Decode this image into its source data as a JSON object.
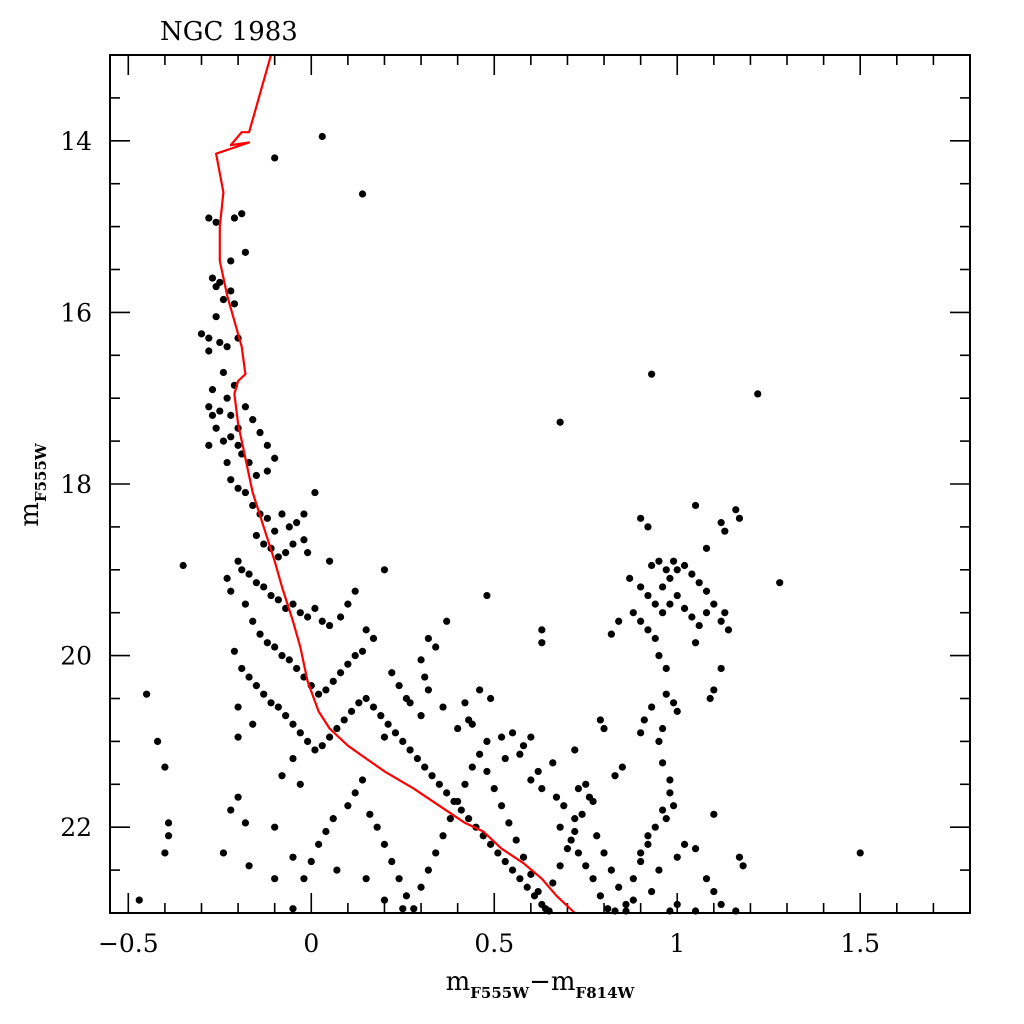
{
  "chart_data": {
    "type": "scatter",
    "title": "NGC 1983",
    "xlabel": {
      "main1": "m",
      "sub1": "F555W",
      "sep": "−",
      "main2": "m",
      "sub2": "F814W"
    },
    "ylabel": {
      "main": "m",
      "sub": "F555W"
    },
    "xlim": [
      -0.55,
      1.8
    ],
    "ylim": [
      23.0,
      13.0
    ],
    "y_inverted": true,
    "x_ticks": [
      {
        "value": -0.5,
        "label": "−0.5"
      },
      {
        "value": 0,
        "label": "0"
      },
      {
        "value": 0.5,
        "label": "0.5"
      },
      {
        "value": 1,
        "label": "1"
      },
      {
        "value": 1.5,
        "label": "1.5"
      }
    ],
    "y_ticks": [
      {
        "value": 14,
        "label": "14"
      },
      {
        "value": 16,
        "label": "16"
      },
      {
        "value": 18,
        "label": "18"
      },
      {
        "value": 20,
        "label": "20"
      },
      {
        "value": 22,
        "label": "22"
      }
    ],
    "x_minor_step": 0.1,
    "y_minor_step": 0.5,
    "isochrone_color": "#ff0000",
    "point_color": "#000000",
    "isochrone": [
      [
        -0.11,
        13.0
      ],
      [
        -0.13,
        13.3
      ],
      [
        -0.15,
        13.6
      ],
      [
        -0.17,
        13.9
      ],
      [
        -0.19,
        13.9
      ],
      [
        -0.22,
        14.05
      ],
      [
        -0.17,
        14.02
      ],
      [
        -0.26,
        14.15
      ],
      [
        -0.24,
        14.6
      ],
      [
        -0.25,
        15.0
      ],
      [
        -0.25,
        15.4
      ],
      [
        -0.23,
        15.8
      ],
      [
        -0.21,
        16.1
      ],
      [
        -0.19,
        16.4
      ],
      [
        -0.18,
        16.72
      ],
      [
        -0.2,
        16.8
      ],
      [
        -0.21,
        16.95
      ],
      [
        -0.2,
        17.3
      ],
      [
        -0.18,
        17.7
      ],
      [
        -0.16,
        18.1
      ],
      [
        -0.13,
        18.5
      ],
      [
        -0.1,
        18.9
      ],
      [
        -0.08,
        19.2
      ],
      [
        -0.05,
        19.6
      ],
      [
        -0.03,
        19.9
      ],
      [
        -0.01,
        20.3
      ],
      [
        0.02,
        20.65
      ],
      [
        0.05,
        20.85
      ],
      [
        0.1,
        21.05
      ],
      [
        0.15,
        21.2
      ],
      [
        0.2,
        21.35
      ],
      [
        0.28,
        21.55
      ],
      [
        0.35,
        21.75
      ],
      [
        0.42,
        21.95
      ],
      [
        0.47,
        22.05
      ],
      [
        0.52,
        22.25
      ],
      [
        0.58,
        22.42
      ],
      [
        0.63,
        22.6
      ],
      [
        0.67,
        22.8
      ],
      [
        0.72,
        23.05
      ]
    ],
    "points": [
      [
        0.03,
        13.95
      ],
      [
        -0.1,
        14.2
      ],
      [
        0.14,
        14.62
      ],
      [
        -0.28,
        14.9
      ],
      [
        -0.26,
        14.95
      ],
      [
        -0.19,
        14.85
      ],
      [
        -0.21,
        14.9
      ],
      [
        -0.18,
        15.3
      ],
      [
        -0.22,
        15.4
      ],
      [
        -0.27,
        15.6
      ],
      [
        -0.26,
        15.7
      ],
      [
        -0.25,
        15.65
      ],
      [
        -0.22,
        15.75
      ],
      [
        -0.24,
        15.85
      ],
      [
        -0.21,
        15.9
      ],
      [
        -0.26,
        16.05
      ],
      [
        -0.28,
        16.3
      ],
      [
        -0.3,
        16.25
      ],
      [
        -0.25,
        16.35
      ],
      [
        -0.23,
        16.4
      ],
      [
        -0.28,
        16.45
      ],
      [
        -0.2,
        16.3
      ],
      [
        -0.24,
        16.7
      ],
      [
        -0.27,
        16.9
      ],
      [
        -0.23,
        17.0
      ],
      [
        -0.21,
        16.85
      ],
      [
        -0.25,
        17.15
      ],
      [
        -0.28,
        17.1
      ],
      [
        -0.27,
        17.2
      ],
      [
        -0.26,
        17.35
      ],
      [
        -0.28,
        17.55
      ],
      [
        -0.22,
        17.2
      ],
      [
        -0.2,
        17.35
      ],
      [
        -0.18,
        17.1
      ],
      [
        -0.16,
        17.25
      ],
      [
        -0.14,
        17.4
      ],
      [
        -0.12,
        17.55
      ],
      [
        -0.22,
        17.45
      ],
      [
        -0.24,
        17.5
      ],
      [
        -0.2,
        17.55
      ],
      [
        -0.19,
        17.65
      ],
      [
        -0.17,
        17.75
      ],
      [
        -0.15,
        17.9
      ],
      [
        -0.12,
        17.85
      ],
      [
        -0.1,
        17.7
      ],
      [
        -0.23,
        17.75
      ],
      [
        -0.22,
        17.95
      ],
      [
        -0.2,
        18.05
      ],
      [
        -0.18,
        18.1
      ],
      [
        -0.16,
        18.25
      ],
      [
        -0.14,
        18.35
      ],
      [
        -0.12,
        18.4
      ],
      [
        -0.1,
        18.55
      ],
      [
        -0.08,
        18.35
      ],
      [
        -0.06,
        18.5
      ],
      [
        -0.04,
        18.45
      ],
      [
        -0.02,
        18.35
      ],
      [
        0.01,
        18.1
      ],
      [
        -0.15,
        18.6
      ],
      [
        -0.13,
        18.7
      ],
      [
        -0.11,
        18.75
      ],
      [
        -0.09,
        18.85
      ],
      [
        -0.07,
        18.8
      ],
      [
        -0.05,
        18.7
      ],
      [
        -0.02,
        18.65
      ],
      [
        -0.01,
        18.8
      ],
      [
        0.05,
        18.9
      ],
      [
        -0.2,
        18.9
      ],
      [
        -0.19,
        19.0
      ],
      [
        -0.17,
        19.05
      ],
      [
        -0.15,
        19.15
      ],
      [
        -0.13,
        19.2
      ],
      [
        -0.11,
        19.3
      ],
      [
        -0.09,
        19.35
      ],
      [
        -0.07,
        19.45
      ],
      [
        -0.05,
        19.4
      ],
      [
        -0.03,
        19.5
      ],
      [
        -0.01,
        19.55
      ],
      [
        0.01,
        19.45
      ],
      [
        0.03,
        19.6
      ],
      [
        0.05,
        19.65
      ],
      [
        0.08,
        19.55
      ],
      [
        0.1,
        19.4
      ],
      [
        0.12,
        19.25
      ],
      [
        0.15,
        19.7
      ],
      [
        0.17,
        19.8
      ],
      [
        0.2,
        19.0
      ],
      [
        -0.35,
        18.95
      ],
      [
        -0.23,
        19.1
      ],
      [
        -0.22,
        19.25
      ],
      [
        -0.18,
        19.4
      ],
      [
        -0.16,
        19.6
      ],
      [
        -0.14,
        19.75
      ],
      [
        -0.12,
        19.85
      ],
      [
        -0.1,
        19.9
      ],
      [
        -0.08,
        20.0
      ],
      [
        -0.06,
        20.05
      ],
      [
        -0.04,
        20.15
      ],
      [
        -0.02,
        20.25
      ],
      [
        0.0,
        20.35
      ],
      [
        0.02,
        20.45
      ],
      [
        0.04,
        20.4
      ],
      [
        0.06,
        20.3
      ],
      [
        0.08,
        20.2
      ],
      [
        0.1,
        20.1
      ],
      [
        0.12,
        20.0
      ],
      [
        0.14,
        19.95
      ],
      [
        -0.21,
        19.95
      ],
      [
        -0.19,
        20.15
      ],
      [
        -0.17,
        20.25
      ],
      [
        -0.15,
        20.35
      ],
      [
        -0.13,
        20.45
      ],
      [
        -0.11,
        20.55
      ],
      [
        -0.09,
        20.6
      ],
      [
        -0.07,
        20.7
      ],
      [
        -0.05,
        20.8
      ],
      [
        -0.03,
        20.9
      ],
      [
        -0.01,
        21.0
      ],
      [
        0.01,
        21.1
      ],
      [
        0.03,
        21.05
      ],
      [
        0.05,
        20.95
      ],
      [
        0.07,
        20.85
      ],
      [
        0.09,
        20.75
      ],
      [
        0.11,
        20.65
      ],
      [
        0.13,
        20.55
      ],
      [
        0.15,
        20.5
      ],
      [
        0.17,
        20.6
      ],
      [
        0.19,
        20.7
      ],
      [
        0.21,
        20.8
      ],
      [
        0.23,
        20.9
      ],
      [
        0.25,
        21.0
      ],
      [
        0.27,
        21.1
      ],
      [
        0.29,
        21.2
      ],
      [
        0.31,
        21.3
      ],
      [
        0.33,
        21.4
      ],
      [
        0.35,
        21.5
      ],
      [
        0.37,
        21.6
      ],
      [
        0.39,
        21.7
      ],
      [
        0.41,
        21.8
      ],
      [
        0.43,
        21.9
      ],
      [
        0.45,
        22.0
      ],
      [
        0.47,
        22.1
      ],
      [
        0.49,
        22.2
      ],
      [
        0.51,
        22.3
      ],
      [
        0.53,
        22.4
      ],
      [
        0.55,
        22.5
      ],
      [
        0.57,
        22.6
      ],
      [
        0.59,
        22.7
      ],
      [
        0.61,
        22.8
      ],
      [
        0.63,
        22.9
      ],
      [
        0.65,
        23.0
      ],
      [
        -0.45,
        20.45
      ],
      [
        -0.4,
        21.3
      ],
      [
        -0.42,
        21.0
      ],
      [
        -0.39,
        21.95
      ],
      [
        -0.39,
        22.1
      ],
      [
        -0.4,
        22.3
      ],
      [
        -0.2,
        20.6
      ],
      [
        -0.2,
        20.95
      ],
      [
        -0.16,
        20.8
      ],
      [
        -0.2,
        21.65
      ],
      [
        -0.22,
        21.8
      ],
      [
        -0.17,
        22.45
      ],
      [
        -0.24,
        22.3
      ],
      [
        -0.18,
        21.95
      ],
      [
        -0.08,
        21.4
      ],
      [
        -0.05,
        21.2
      ],
      [
        -0.03,
        21.5
      ],
      [
        -0.1,
        22.0
      ],
      [
        -0.05,
        22.35
      ],
      [
        -0.02,
        22.6
      ],
      [
        0.0,
        22.4
      ],
      [
        0.02,
        22.2
      ],
      [
        0.04,
        22.05
      ],
      [
        0.06,
        21.9
      ],
      [
        0.07,
        22.5
      ],
      [
        0.1,
        21.75
      ],
      [
        0.12,
        21.6
      ],
      [
        0.14,
        21.45
      ],
      [
        0.16,
        21.85
      ],
      [
        0.18,
        22.0
      ],
      [
        0.2,
        22.2
      ],
      [
        0.22,
        22.4
      ],
      [
        0.24,
        22.6
      ],
      [
        0.26,
        22.8
      ],
      [
        0.28,
        22.95
      ],
      [
        0.3,
        22.7
      ],
      [
        0.32,
        22.5
      ],
      [
        0.34,
        22.3
      ],
      [
        0.36,
        22.1
      ],
      [
        0.38,
        21.9
      ],
      [
        0.4,
        21.7
      ],
      [
        0.42,
        21.5
      ],
      [
        0.44,
        21.3
      ],
      [
        0.46,
        21.15
      ],
      [
        0.48,
        21.35
      ],
      [
        0.5,
        21.55
      ],
      [
        0.52,
        21.75
      ],
      [
        0.54,
        21.95
      ],
      [
        0.56,
        22.15
      ],
      [
        0.58,
        22.35
      ],
      [
        0.6,
        22.55
      ],
      [
        0.62,
        22.75
      ],
      [
        0.64,
        22.95
      ],
      [
        0.66,
        22.65
      ],
      [
        0.68,
        22.45
      ],
      [
        0.7,
        22.25
      ],
      [
        0.72,
        22.05
      ],
      [
        0.74,
        21.85
      ],
      [
        0.76,
        21.65
      ],
      [
        0.78,
        22.1
      ],
      [
        0.8,
        22.3
      ],
      [
        0.82,
        22.5
      ],
      [
        0.84,
        22.7
      ],
      [
        0.86,
        22.9
      ],
      [
        0.88,
        22.6
      ],
      [
        0.9,
        22.4
      ],
      [
        0.92,
        22.2
      ],
      [
        0.94,
        22.0
      ],
      [
        0.96,
        21.8
      ],
      [
        0.98,
        21.6
      ],
      [
        0.85,
        21.3
      ],
      [
        0.83,
        21.4
      ],
      [
        0.8,
        20.85
      ],
      [
        0.79,
        20.75
      ],
      [
        0.72,
        21.1
      ],
      [
        0.66,
        21.25
      ],
      [
        0.62,
        21.35
      ],
      [
        0.6,
        20.95
      ],
      [
        0.52,
        20.95
      ],
      [
        0.48,
        21.0
      ],
      [
        0.44,
        20.8
      ],
      [
        0.4,
        20.85
      ],
      [
        0.42,
        20.55
      ],
      [
        0.36,
        20.6
      ],
      [
        0.32,
        20.4
      ],
      [
        0.3,
        20.7
      ],
      [
        0.27,
        20.55
      ],
      [
        0.24,
        20.35
      ],
      [
        0.22,
        20.2
      ],
      [
        0.3,
        20.05
      ],
      [
        0.31,
        20.25
      ],
      [
        0.34,
        19.9
      ],
      [
        0.32,
        19.8
      ],
      [
        0.37,
        19.6
      ],
      [
        0.26,
        20.5
      ],
      [
        0.2,
        20.95
      ],
      [
        0.48,
        19.3
      ],
      [
        0.63,
        19.7
      ],
      [
        0.63,
        19.85
      ],
      [
        0.46,
        20.4
      ],
      [
        0.43,
        20.75
      ],
      [
        0.49,
        20.5
      ],
      [
        0.55,
        20.9
      ],
      [
        0.58,
        21.05
      ],
      [
        0.57,
        21.15
      ],
      [
        0.53,
        21.2
      ],
      [
        0.6,
        21.45
      ],
      [
        0.63,
        21.55
      ],
      [
        0.67,
        21.65
      ],
      [
        0.69,
        21.75
      ],
      [
        0.73,
        21.55
      ],
      [
        0.75,
        21.5
      ],
      [
        0.77,
        21.7
      ],
      [
        0.72,
        21.9
      ],
      [
        0.68,
        22.0
      ],
      [
        0.71,
        22.15
      ],
      [
        0.73,
        22.3
      ],
      [
        0.75,
        22.45
      ],
      [
        0.77,
        22.6
      ],
      [
        0.79,
        22.8
      ],
      [
        0.81,
        22.95
      ],
      [
        0.83,
        23.0
      ],
      [
        0.86,
        23.0
      ],
      [
        0.88,
        22.85
      ],
      [
        0.93,
        22.75
      ],
      [
        0.95,
        22.5
      ],
      [
        0.9,
        22.3
      ],
      [
        0.92,
        22.1
      ],
      [
        0.97,
        21.9
      ],
      [
        0.99,
        21.75
      ],
      [
        1.0,
        22.35
      ],
      [
        1.02,
        22.2
      ],
      [
        1.05,
        22.25
      ],
      [
        1.08,
        22.6
      ],
      [
        1.1,
        22.75
      ],
      [
        1.12,
        22.9
      ],
      [
        1.16,
        23.0
      ],
      [
        1.17,
        22.35
      ],
      [
        1.18,
        22.45
      ],
      [
        1.1,
        21.85
      ],
      [
        1.5,
        22.3
      ],
      [
        1.05,
        23.0
      ],
      [
        1.0,
        22.9
      ],
      [
        0.98,
        23.0
      ],
      [
        -0.47,
        22.85
      ],
      [
        -0.1,
        22.6
      ],
      [
        -0.05,
        22.95
      ],
      [
        0.15,
        22.6
      ],
      [
        0.2,
        22.85
      ],
      [
        0.25,
        22.95
      ],
      [
        0.9,
        18.4
      ],
      [
        0.92,
        18.5
      ],
      [
        0.93,
        16.72
      ],
      [
        1.22,
        16.95
      ],
      [
        0.68,
        17.28
      ],
      [
        1.05,
        18.25
      ],
      [
        1.12,
        18.45
      ],
      [
        1.13,
        18.55
      ],
      [
        1.16,
        18.3
      ],
      [
        1.17,
        18.4
      ],
      [
        1.08,
        18.75
      ],
      [
        1.28,
        19.15
      ],
      [
        0.87,
        19.1
      ],
      [
        0.9,
        19.2
      ],
      [
        0.92,
        19.3
      ],
      [
        0.94,
        19.4
      ],
      [
        0.96,
        19.2
      ],
      [
        0.98,
        19.1
      ],
      [
        1.0,
        19.0
      ],
      [
        1.02,
        18.95
      ],
      [
        1.04,
        19.05
      ],
      [
        1.06,
        19.15
      ],
      [
        1.08,
        19.25
      ],
      [
        0.93,
        18.95
      ],
      [
        0.95,
        18.9
      ],
      [
        0.97,
        19.0
      ],
      [
        0.99,
        18.9
      ],
      [
        0.88,
        19.5
      ],
      [
        0.9,
        19.6
      ],
      [
        0.92,
        19.7
      ],
      [
        0.94,
        19.8
      ],
      [
        0.96,
        19.5
      ],
      [
        0.98,
        19.4
      ],
      [
        1.0,
        19.3
      ],
      [
        1.02,
        19.45
      ],
      [
        1.04,
        19.55
      ],
      [
        1.06,
        19.65
      ],
      [
        1.08,
        19.5
      ],
      [
        1.1,
        19.4
      ],
      [
        1.12,
        19.6
      ],
      [
        1.14,
        19.7
      ],
      [
        1.13,
        19.5
      ],
      [
        0.84,
        19.6
      ],
      [
        0.82,
        19.75
      ],
      [
        0.95,
        20.0
      ],
      [
        0.97,
        20.15
      ],
      [
        1.05,
        19.85
      ],
      [
        1.12,
        20.15
      ],
      [
        1.1,
        20.4
      ],
      [
        1.09,
        20.5
      ],
      [
        0.97,
        20.45
      ],
      [
        0.99,
        20.55
      ],
      [
        1.0,
        20.65
      ],
      [
        0.96,
        20.85
      ],
      [
        0.95,
        21.0
      ],
      [
        0.93,
        20.6
      ],
      [
        0.91,
        20.75
      ],
      [
        0.9,
        20.9
      ],
      [
        0.96,
        21.25
      ],
      [
        0.98,
        21.45
      ]
    ]
  }
}
